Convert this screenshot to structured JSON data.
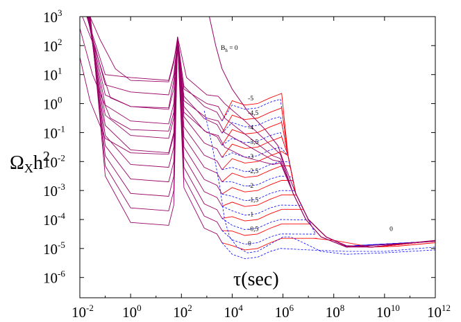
{
  "chart_data": {
    "type": "line",
    "xlabel": "τ(sec)",
    "ylabel": {
      "base": "Ω",
      "sub": "X",
      "rest": "h",
      "sup": "2"
    },
    "x_scale": "log",
    "y_scale": "log",
    "xlim_exponent": [
      -2,
      12
    ],
    "ylim_exponent": [
      -6.7,
      3
    ],
    "x_ticks": [
      {
        "base": "10",
        "exp": "-2"
      },
      {
        "base": "10",
        "exp": "0"
      },
      {
        "base": "10",
        "exp": "2"
      },
      {
        "base": "10",
        "exp": "4"
      },
      {
        "base": "10",
        "exp": "6"
      },
      {
        "base": "10",
        "exp": "8"
      },
      {
        "base": "10",
        "exp": "10"
      },
      {
        "base": "10",
        "exp": "12"
      }
    ],
    "y_ticks": [
      {
        "base": "10",
        "exp": "3",
        "v": 3
      },
      {
        "base": "10",
        "exp": "2",
        "v": 2
      },
      {
        "base": "10",
        "exp": "1",
        "v": 1
      },
      {
        "base": "10",
        "exp": "0",
        "v": 0
      },
      {
        "base": "10",
        "exp": "-1",
        "v": -1
      },
      {
        "base": "10",
        "exp": "-2",
        "v": -2
      },
      {
        "base": "10",
        "exp": "-3",
        "v": -3
      },
      {
        "base": "10",
        "exp": "-4",
        "v": -4
      },
      {
        "base": "10",
        "exp": "-5",
        "v": -5
      },
      {
        "base": "10",
        "exp": "-6",
        "v": -6
      }
    ],
    "grid": false,
    "colors": {
      "solid": "#ff0000",
      "dashed": "#0000ff",
      "envelope": "#990066"
    },
    "B_h_label": {
      "text": "B",
      "sub": "h",
      "rest": " = 0"
    },
    "curve_labels": [
      "-5",
      "-4,5",
      "-4",
      "-3,5",
      "-3",
      "-2,5",
      "-2",
      "-1,5",
      "-1",
      "-0,5",
      "0"
    ],
    "top_right_label": "0",
    "envelope_curves": [
      {
        "points": [
          [
            -1.6,
            3
          ],
          [
            -1.2,
            2.2
          ],
          [
            -0.6,
            1.2
          ],
          [
            0,
            0.8
          ],
          [
            1.5,
            0.75
          ],
          [
            1.7,
            1.4
          ],
          [
            1.85,
            2.3
          ],
          [
            2.2,
            0.9
          ],
          [
            3,
            0.3
          ],
          [
            3.45,
            0.25
          ],
          [
            3.7,
            0.0
          ],
          [
            4.5,
            -0.6
          ],
          [
            5.6,
            -1.5
          ],
          [
            5.9,
            -1.75
          ],
          [
            6.4,
            -3.1
          ],
          [
            6.9,
            -4.0
          ],
          [
            7.5,
            -4.6
          ],
          [
            8.5,
            -4.95
          ],
          [
            9.5,
            -4.95
          ],
          [
            10.5,
            -4.85
          ],
          [
            12,
            -4.75
          ]
        ]
      },
      {
        "points": [
          [
            -1.9,
            3
          ],
          [
            -1.4,
            1.9
          ],
          [
            -0.8,
            0.2
          ],
          [
            0,
            -0.1
          ],
          [
            1.5,
            -0.15
          ],
          [
            1.7,
            0.8
          ],
          [
            1.85,
            2.3
          ],
          [
            2.1,
            0.5
          ],
          [
            3,
            0.0
          ],
          [
            3.45,
            -0.1
          ],
          [
            3.7,
            -0.5
          ],
          [
            4.5,
            -1.05
          ],
          [
            5.6,
            -1.8
          ],
          [
            5.9,
            -1.9
          ],
          [
            6.4,
            -3.1
          ],
          [
            6.9,
            -4.0
          ],
          [
            7.5,
            -4.6
          ],
          [
            8.5,
            -4.95
          ],
          [
            12,
            -4.75
          ]
        ]
      },
      {
        "points": [
          [
            -2,
            2.6
          ],
          [
            -1.5,
            1.0
          ],
          [
            -0.8,
            -0.5
          ],
          [
            0,
            -0.9
          ],
          [
            1.5,
            -0.95
          ],
          [
            1.7,
            -0.3
          ],
          [
            1.85,
            2.3
          ],
          [
            2.1,
            0.1
          ],
          [
            3,
            -0.5
          ],
          [
            3.45,
            -0.6
          ],
          [
            3.7,
            -1.0
          ],
          [
            4.5,
            -1.4
          ],
          [
            5.6,
            -1.95
          ],
          [
            5.9,
            -2.0
          ],
          [
            6.4,
            -3.1
          ],
          [
            6.9,
            -4.0
          ],
          [
            7.5,
            -4.6
          ],
          [
            8.5,
            -4.95
          ],
          [
            12,
            -4.75
          ]
        ]
      },
      {
        "points": [
          [
            -2,
            1.6
          ],
          [
            -1.6,
            0.1
          ],
          [
            -1.0,
            -1.2
          ],
          [
            0,
            -1.7
          ],
          [
            1.5,
            -1.75
          ],
          [
            1.7,
            -1.1
          ],
          [
            1.85,
            2.3
          ],
          [
            2.1,
            -0.3
          ],
          [
            3,
            -1.0
          ],
          [
            3.45,
            -1.1
          ],
          [
            3.7,
            -1.5
          ],
          [
            4.5,
            -1.85
          ],
          [
            5.6,
            -2.1
          ],
          [
            5.9,
            -2.05
          ],
          [
            6.4,
            -3.1
          ],
          [
            6.9,
            -4.0
          ],
          [
            7.5,
            -4.6
          ],
          [
            8.5,
            -4.95
          ],
          [
            12,
            -4.75
          ]
        ]
      }
    ],
    "s_dashed_curve": {
      "points": [
        [
          2.9,
          -0.25
        ],
        [
          3.2,
          -1.4
        ],
        [
          3.5,
          -2.8
        ],
        [
          3.7,
          -4.0
        ],
        [
          3.9,
          -4.6
        ],
        [
          4.2,
          -4.95
        ],
        [
          4.6,
          -5.15
        ],
        [
          5.0,
          -5.1
        ],
        [
          5.5,
          -4.85
        ],
        [
          6.0,
          -4.6
        ],
        [
          6.3,
          -4.6
        ],
        [
          6.8,
          -4.8
        ],
        [
          7.5,
          -5.1
        ],
        [
          8.5,
          -5.2
        ],
        [
          10,
          -5.15
        ],
        [
          12,
          -5.05
        ]
      ]
    },
    "bh_zero_curve": {
      "points": [
        [
          3.1,
          3
        ],
        [
          3.35,
          2.0
        ],
        [
          3.6,
          1.2
        ],
        [
          4.0,
          0.5
        ],
        [
          4.6,
          -0.25
        ],
        [
          5.3,
          -0.9
        ],
        [
          5.8,
          -1.45
        ],
        [
          6.1,
          -2.2
        ],
        [
          6.5,
          -3.1
        ],
        [
          7.0,
          -4.0
        ],
        [
          7.7,
          -4.6
        ],
        [
          8.5,
          -4.9
        ],
        [
          9.5,
          -4.95
        ],
        [
          10.5,
          -4.85
        ],
        [
          12,
          -4.72
        ]
      ]
    },
    "family": [
      {
        "label": "-5",
        "plateau": 0.3,
        "plateau_dash": 0.15
      },
      {
        "label": "-4,5",
        "plateau": -0.2,
        "plateau_dash": -0.45
      },
      {
        "label": "-4",
        "plateau": -0.7,
        "plateau_dash": -1.0
      },
      {
        "label": "-3,5",
        "plateau": -1.2,
        "plateau_dash": -1.5
      },
      {
        "label": "-3",
        "plateau": -1.7,
        "plateau_dash": -2.0
      },
      {
        "label": "-2,5",
        "plateau": -2.2,
        "plateau_dash": -2.5
      },
      {
        "label": "-2",
        "plateau": -2.7,
        "plateau_dash": -3.0
      },
      {
        "label": "-1,5",
        "plateau": -3.2,
        "plateau_dash": -3.5
      },
      {
        "label": "-1",
        "plateau": -3.7,
        "plateau_dash": -4.0
      },
      {
        "label": "-0,5",
        "plateau": -4.2,
        "plateau_dash": -4.5
      },
      {
        "label": "0",
        "plateau": -4.7,
        "plateau_dash": -5.0
      }
    ]
  }
}
